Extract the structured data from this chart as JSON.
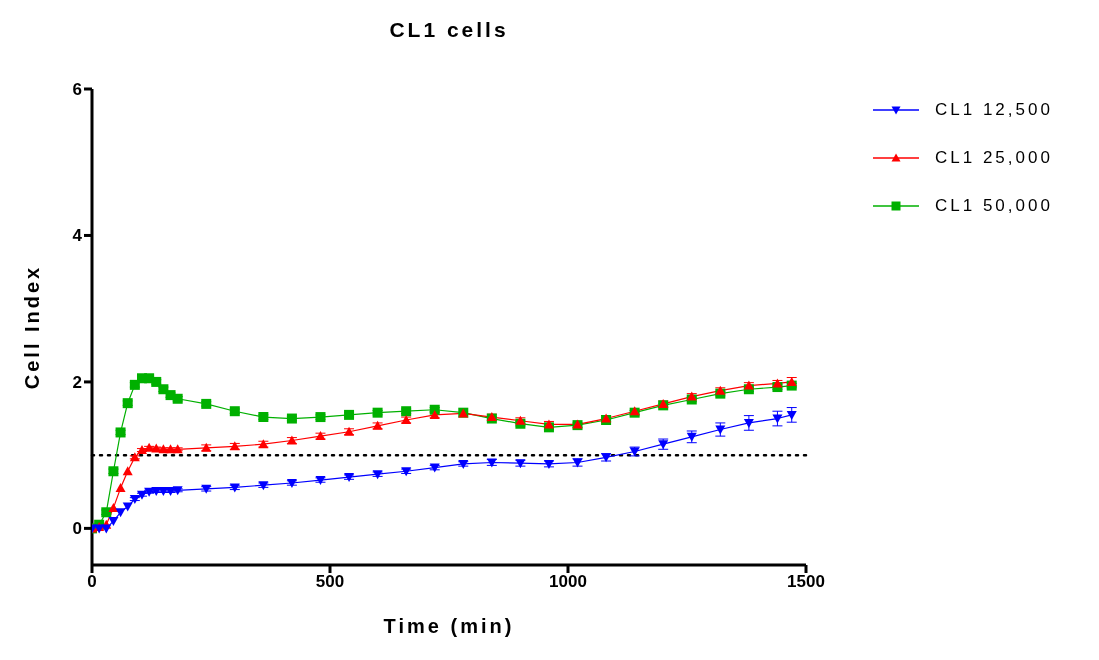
{
  "chart_data": {
    "type": "line",
    "title": "CL1 cells",
    "xlabel": "Time (min)",
    "ylabel": "Cell Index",
    "x": [
      0,
      15,
      30,
      45,
      60,
      75,
      90,
      105,
      120,
      135,
      150,
      165,
      180,
      240,
      300,
      360,
      420,
      480,
      540,
      600,
      660,
      720,
      780,
      840,
      900,
      960,
      1020,
      1080,
      1140,
      1200,
      1260,
      1320,
      1380,
      1440,
      1470
    ],
    "series": [
      {
        "name": "CL1 12,500",
        "color": "#0000ff",
        "marker": "triangle-down",
        "values": [
          0,
          0,
          0,
          0.1,
          0.22,
          0.3,
          0.4,
          0.46,
          0.5,
          0.51,
          0.51,
          0.51,
          0.52,
          0.54,
          0.56,
          0.59,
          0.62,
          0.66,
          0.7,
          0.74,
          0.78,
          0.83,
          0.88,
          0.9,
          0.89,
          0.88,
          0.9,
          0.97,
          1.05,
          1.15,
          1.25,
          1.35,
          1.44,
          1.5,
          1.55
        ],
        "errors": [
          null,
          null,
          null,
          null,
          null,
          null,
          0.02,
          0.02,
          0.02,
          0.02,
          0.02,
          0.02,
          0.02,
          0.03,
          0.03,
          0.03,
          0.03,
          0.03,
          0.03,
          0.03,
          0.03,
          0.03,
          0.03,
          0.04,
          0.04,
          0.04,
          0.05,
          0.05,
          0.06,
          0.07,
          0.08,
          0.09,
          0.1,
          0.1,
          0.1
        ]
      },
      {
        "name": "CL1 25,000",
        "color": "#ff0000",
        "marker": "triangle",
        "values": [
          0,
          0.02,
          0.05,
          0.28,
          0.55,
          0.78,
          0.97,
          1.07,
          1.1,
          1.09,
          1.08,
          1.08,
          1.08,
          1.1,
          1.12,
          1.15,
          1.2,
          1.26,
          1.32,
          1.4,
          1.48,
          1.55,
          1.57,
          1.52,
          1.47,
          1.42,
          1.42,
          1.5,
          1.6,
          1.7,
          1.8,
          1.88,
          1.95,
          1.98,
          2.0
        ],
        "errors": [
          null,
          null,
          null,
          null,
          null,
          null,
          0.02,
          0.02,
          0.02,
          0.02,
          0.02,
          0.02,
          0.02,
          0.04,
          0.04,
          0.04,
          0.04,
          0.04,
          0.04,
          0.04,
          0.04,
          0.04,
          null,
          0.04,
          0.04,
          0.04,
          null,
          0.04,
          null,
          0.04,
          0.04,
          0.04,
          0.04,
          0.04,
          0.06
        ]
      },
      {
        "name": "CL1 50,000",
        "color": "#00b000",
        "marker": "square",
        "values": [
          0,
          0.05,
          0.22,
          0.78,
          1.31,
          1.71,
          1.96,
          2.05,
          2.05,
          2.0,
          1.9,
          1.82,
          1.77,
          1.7,
          1.6,
          1.52,
          1.5,
          1.52,
          1.55,
          1.58,
          1.6,
          1.62,
          1.58,
          1.5,
          1.43,
          1.38,
          1.41,
          1.48,
          1.58,
          1.68,
          1.76,
          1.84,
          1.9,
          1.93,
          1.95
        ],
        "errors": [
          null,
          null,
          0.03,
          0.03,
          0.03,
          0.03,
          0.03,
          0.03,
          0.03,
          0.03,
          0.03,
          0.03,
          0.03,
          0.03,
          0.03,
          0.03,
          0.03,
          0.03,
          0.03,
          0.03,
          0.03,
          0.03,
          null,
          0.03,
          0.03,
          0.03,
          0.03,
          0.03,
          0.03,
          0.03,
          0.03,
          0.03,
          0.03,
          0.03,
          0.03
        ]
      }
    ],
    "xlim": [
      0,
      1500
    ],
    "xticks": [
      0,
      500,
      1000,
      1500
    ],
    "ylim": [
      -0.5,
      6
    ],
    "yticks": [
      0,
      2,
      4,
      6
    ],
    "ref_lines": [
      {
        "axis": "y",
        "value": 1,
        "color": "#000000",
        "line_style": "dotted"
      }
    ],
    "grid": false,
    "legend": "top right"
  }
}
